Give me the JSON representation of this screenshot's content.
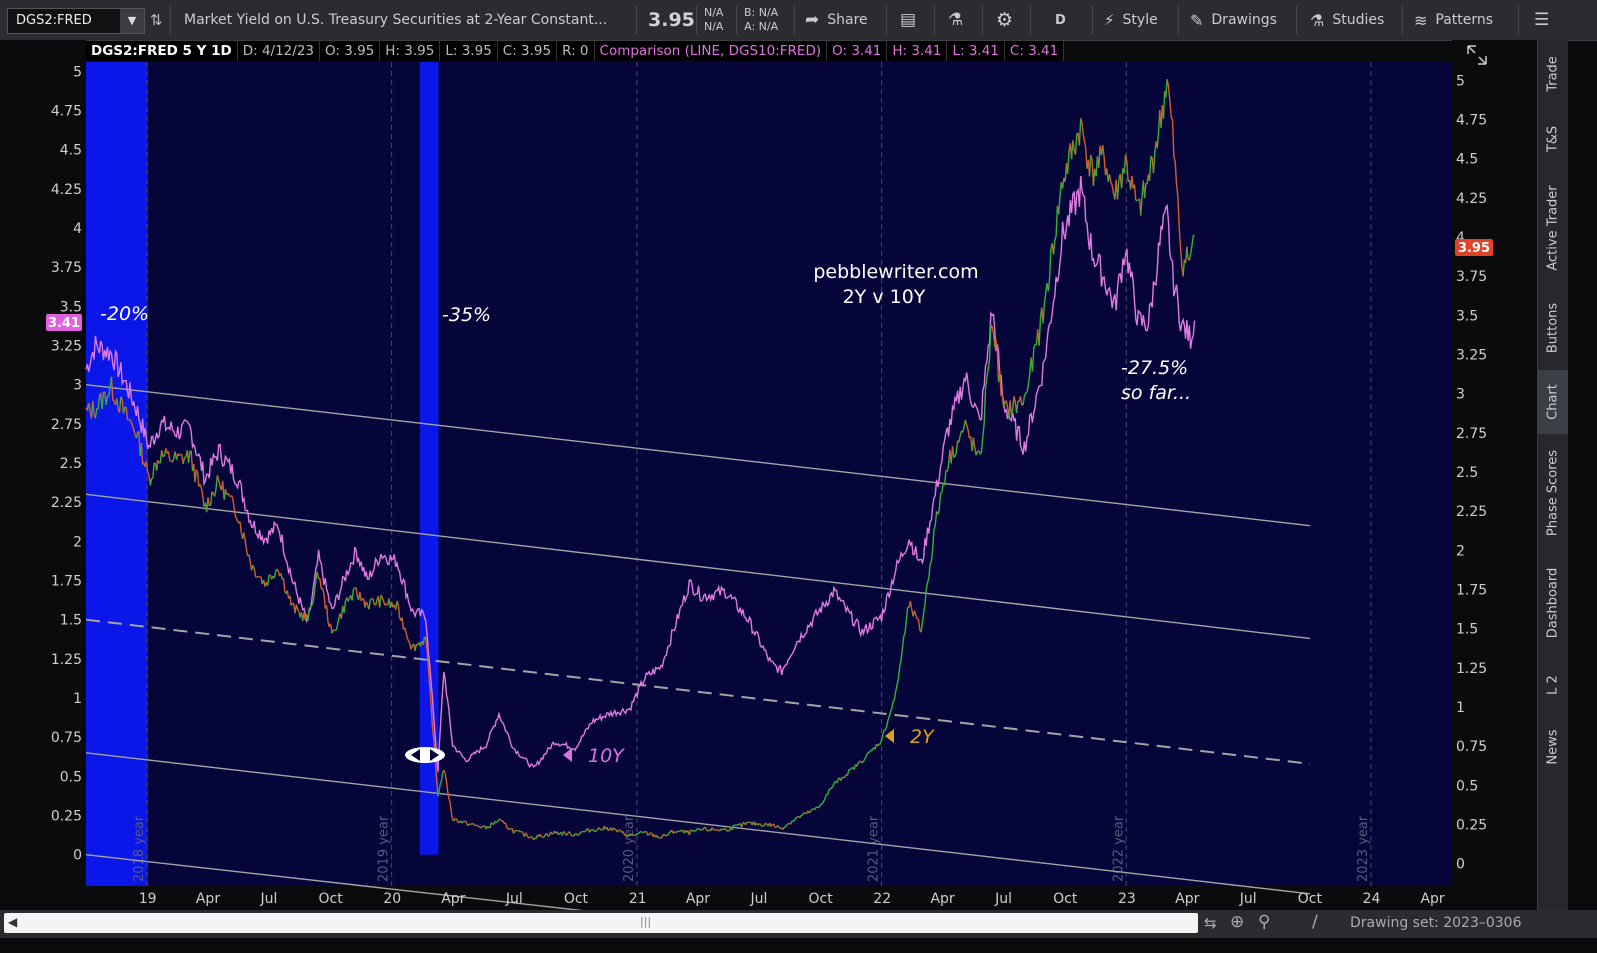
{
  "toolbar": {
    "symbol": "DGS2:FRED",
    "description": "Market Yield on U.S. Treasury Securities at 2-Year Constant...",
    "last_price": "3.95",
    "na_top": "N/A",
    "na_bottom": "N/A",
    "bid": "B: N/A",
    "ask": "A: N/A",
    "share_label": "Share",
    "aggregation": "D",
    "style_label": "Style",
    "drawings_label": "Drawings",
    "studies_label": "Studies",
    "patterns_label": "Patterns"
  },
  "info_bar": {
    "symbol_period": "DGS2:FRED 5 Y 1D",
    "date": "D: 4/12/23",
    "open": "O: 3.95",
    "high": "H: 3.95",
    "low": "L: 3.95",
    "close": "C: 3.95",
    "range": "R: 0",
    "comparison": "Comparison (LINE, DGS10:FRED)",
    "cmp_open": "O: 3.41",
    "cmp_high": "H: 3.41",
    "cmp_low": "L: 3.41",
    "cmp_close": "C: 3.41"
  },
  "side_tabs": [
    "Trade",
    "T&S",
    "Active Trader",
    "Buttons",
    "Chart",
    "Phase Scores",
    "Dashboard",
    "L 2",
    "News"
  ],
  "bottom_bar": {
    "drawing_set": "Drawing set: 2023–0306"
  },
  "colors": {
    "background": "#05053a",
    "recession_band": "#0a17e8",
    "series_10y": "#e07ae0",
    "series_2y_up": "#2fb33a",
    "series_2y_down": "#d95a2a",
    "trend_lines": "#a4a4a4",
    "badge_2y": "#e0432a",
    "badge_10y": "#e060e0",
    "label_2y": "#d9a21a",
    "label_10y": "#e070e0"
  },
  "chart_data": {
    "type": "line",
    "ylim": [
      -0.2,
      5.06
    ],
    "xlim": [
      "2018-10-01",
      "2024-04-30"
    ],
    "y_ticks_left": [
      "5",
      "4.75",
      "4.5",
      "4.25",
      "4",
      "3.75",
      "3.5",
      "3.25",
      "3",
      "2.75",
      "2.5",
      "2.25",
      "2",
      "1.75",
      "1.5",
      "1.25",
      "1",
      "0.75",
      "0.5",
      "0.25",
      "0"
    ],
    "y_ticks_right": [
      "5",
      "4.75",
      "4.5",
      "4.25",
      "4",
      "3.75",
      "3.5",
      "3.25",
      "3",
      "2.75",
      "2.5",
      "2.25",
      "2",
      "1.75",
      "1.5",
      "1.25",
      "1",
      "0.75",
      "0.5",
      "0.25",
      "0"
    ],
    "x_ticks": [
      {
        "label": "19",
        "date": "2019-01-01"
      },
      {
        "label": "Apr",
        "date": "2019-04-01"
      },
      {
        "label": "Jul",
        "date": "2019-07-01"
      },
      {
        "label": "Oct",
        "date": "2019-10-01"
      },
      {
        "label": "20",
        "date": "2020-01-01"
      },
      {
        "label": "Apr",
        "date": "2020-04-01"
      },
      {
        "label": "Jul",
        "date": "2020-07-01"
      },
      {
        "label": "Oct",
        "date": "2020-10-01"
      },
      {
        "label": "21",
        "date": "2021-01-01"
      },
      {
        "label": "Apr",
        "date": "2021-04-01"
      },
      {
        "label": "Jul",
        "date": "2021-07-01"
      },
      {
        "label": "Oct",
        "date": "2021-10-01"
      },
      {
        "label": "22",
        "date": "2022-01-01"
      },
      {
        "label": "Apr",
        "date": "2022-04-01"
      },
      {
        "label": "Jul",
        "date": "2022-07-01"
      },
      {
        "label": "Oct",
        "date": "2022-10-01"
      },
      {
        "label": "23",
        "date": "2023-01-01"
      },
      {
        "label": "Apr",
        "date": "2023-04-01"
      },
      {
        "label": "Jul",
        "date": "2023-07-01"
      },
      {
        "label": "Oct",
        "date": "2023-10-01"
      },
      {
        "label": "24",
        "date": "2024-01-01"
      },
      {
        "label": "Apr",
        "date": "2024-04-01"
      }
    ],
    "year_markers": [
      {
        "label": "2018 year",
        "date": "2018-12-31"
      },
      {
        "label": "2019 year",
        "date": "2019-12-31"
      },
      {
        "label": "2020 year",
        "date": "2020-12-31"
      },
      {
        "label": "2021 year",
        "date": "2021-12-31"
      },
      {
        "label": "2022 year",
        "date": "2022-12-31"
      },
      {
        "label": "2023 year",
        "date": "2023-12-31"
      }
    ],
    "shaded_periods": [
      {
        "from": "2018-10-01",
        "to": "2019-01-01",
        "top": 5.06
      },
      {
        "from": "2020-02-11",
        "to": "2020-03-10",
        "top": 5.06,
        "bottom": 0
      }
    ],
    "series": [
      {
        "name": "DGS10:FRED",
        "points": [
          [
            "2018-10-01",
            3.1
          ],
          [
            "2018-10-15",
            3.25
          ],
          [
            "2018-11-08",
            3.2
          ],
          [
            "2018-11-30",
            3.0
          ],
          [
            "2018-12-15",
            2.85
          ],
          [
            "2019-01-03",
            2.6
          ],
          [
            "2019-01-20",
            2.75
          ],
          [
            "2019-02-15",
            2.7
          ],
          [
            "2019-03-05",
            2.72
          ],
          [
            "2019-03-28",
            2.4
          ],
          [
            "2019-04-17",
            2.58
          ],
          [
            "2019-05-15",
            2.4
          ],
          [
            "2019-06-05",
            2.12
          ],
          [
            "2019-06-25",
            2.02
          ],
          [
            "2019-07-15",
            2.1
          ],
          [
            "2019-08-05",
            1.75
          ],
          [
            "2019-08-28",
            1.47
          ],
          [
            "2019-09-13",
            1.9
          ],
          [
            "2019-10-03",
            1.55
          ],
          [
            "2019-10-25",
            1.8
          ],
          [
            "2019-11-08",
            1.94
          ],
          [
            "2019-11-25",
            1.75
          ],
          [
            "2019-12-15",
            1.92
          ],
          [
            "2020-01-08",
            1.87
          ],
          [
            "2020-01-31",
            1.55
          ],
          [
            "2020-02-20",
            1.52
          ],
          [
            "2020-03-09",
            0.54
          ],
          [
            "2020-03-18",
            1.18
          ],
          [
            "2020-03-31",
            0.7
          ],
          [
            "2020-04-20",
            0.6
          ],
          [
            "2020-05-20",
            0.7
          ],
          [
            "2020-06-08",
            0.9
          ],
          [
            "2020-06-30",
            0.68
          ],
          [
            "2020-07-30",
            0.55
          ],
          [
            "2020-08-30",
            0.72
          ],
          [
            "2020-09-30",
            0.68
          ],
          [
            "2020-10-25",
            0.85
          ],
          [
            "2020-11-20",
            0.9
          ],
          [
            "2020-12-20",
            0.93
          ],
          [
            "2021-01-12",
            1.13
          ],
          [
            "2021-02-05",
            1.2
          ],
          [
            "2021-02-25",
            1.45
          ],
          [
            "2021-03-19",
            1.73
          ],
          [
            "2021-04-08",
            1.65
          ],
          [
            "2021-05-12",
            1.68
          ],
          [
            "2021-06-15",
            1.5
          ],
          [
            "2021-07-19",
            1.22
          ],
          [
            "2021-08-04",
            1.17
          ],
          [
            "2021-08-25",
            1.35
          ],
          [
            "2021-09-28",
            1.55
          ],
          [
            "2021-10-21",
            1.68
          ],
          [
            "2021-11-10",
            1.55
          ],
          [
            "2021-12-02",
            1.42
          ],
          [
            "2021-12-31",
            1.52
          ],
          [
            "2022-01-21",
            1.82
          ],
          [
            "2022-02-10",
            2.02
          ],
          [
            "2022-02-28",
            1.85
          ],
          [
            "2022-03-21",
            2.3
          ],
          [
            "2022-04-08",
            2.7
          ],
          [
            "2022-05-05",
            3.05
          ],
          [
            "2022-05-27",
            2.75
          ],
          [
            "2022-06-14",
            3.48
          ],
          [
            "2022-07-01",
            2.88
          ],
          [
            "2022-08-01",
            2.6
          ],
          [
            "2022-08-29",
            3.1
          ],
          [
            "2022-09-27",
            3.95
          ],
          [
            "2022-10-24",
            4.25
          ],
          [
            "2022-11-10",
            3.85
          ],
          [
            "2022-11-28",
            3.68
          ],
          [
            "2022-12-14",
            3.5
          ],
          [
            "2022-12-30",
            3.88
          ],
          [
            "2023-01-18",
            3.4
          ],
          [
            "2023-02-02",
            3.39
          ],
          [
            "2023-02-21",
            3.95
          ],
          [
            "2023-03-02",
            4.08
          ],
          [
            "2023-03-10",
            3.7
          ],
          [
            "2023-03-24",
            3.38
          ],
          [
            "2023-04-06",
            3.3
          ],
          [
            "2023-04-12",
            3.41
          ]
        ]
      },
      {
        "name": "DGS2:FRED",
        "points": [
          [
            "2018-10-01",
            2.82
          ],
          [
            "2018-10-15",
            2.85
          ],
          [
            "2018-11-08",
            2.98
          ],
          [
            "2018-11-30",
            2.8
          ],
          [
            "2018-12-15",
            2.7
          ],
          [
            "2019-01-03",
            2.4
          ],
          [
            "2019-01-20",
            2.55
          ],
          [
            "2019-02-15",
            2.52
          ],
          [
            "2019-03-05",
            2.55
          ],
          [
            "2019-03-28",
            2.22
          ],
          [
            "2019-04-17",
            2.38
          ],
          [
            "2019-05-15",
            2.18
          ],
          [
            "2019-06-05",
            1.85
          ],
          [
            "2019-06-25",
            1.73
          ],
          [
            "2019-07-15",
            1.84
          ],
          [
            "2019-08-05",
            1.58
          ],
          [
            "2019-08-28",
            1.5
          ],
          [
            "2019-09-13",
            1.8
          ],
          [
            "2019-10-03",
            1.4
          ],
          [
            "2019-10-25",
            1.62
          ],
          [
            "2019-11-08",
            1.67
          ],
          [
            "2019-11-25",
            1.6
          ],
          [
            "2019-12-15",
            1.62
          ],
          [
            "2020-01-08",
            1.58
          ],
          [
            "2020-01-31",
            1.32
          ],
          [
            "2020-02-20",
            1.38
          ],
          [
            "2020-03-09",
            0.38
          ],
          [
            "2020-03-18",
            0.55
          ],
          [
            "2020-03-31",
            0.23
          ],
          [
            "2020-04-20",
            0.2
          ],
          [
            "2020-05-20",
            0.17
          ],
          [
            "2020-06-08",
            0.22
          ],
          [
            "2020-06-30",
            0.15
          ],
          [
            "2020-07-30",
            0.11
          ],
          [
            "2020-08-30",
            0.14
          ],
          [
            "2020-09-30",
            0.13
          ],
          [
            "2020-10-25",
            0.16
          ],
          [
            "2020-11-20",
            0.17
          ],
          [
            "2020-12-20",
            0.12
          ],
          [
            "2021-01-12",
            0.14
          ],
          [
            "2021-02-05",
            0.11
          ],
          [
            "2021-02-25",
            0.15
          ],
          [
            "2021-03-19",
            0.14
          ],
          [
            "2021-04-08",
            0.16
          ],
          [
            "2021-05-12",
            0.16
          ],
          [
            "2021-06-15",
            0.2
          ],
          [
            "2021-07-19",
            0.19
          ],
          [
            "2021-08-04",
            0.17
          ],
          [
            "2021-08-25",
            0.23
          ],
          [
            "2021-09-28",
            0.3
          ],
          [
            "2021-10-21",
            0.45
          ],
          [
            "2021-11-10",
            0.52
          ],
          [
            "2021-12-02",
            0.6
          ],
          [
            "2021-12-31",
            0.73
          ],
          [
            "2022-01-21",
            1.02
          ],
          [
            "2022-02-10",
            1.6
          ],
          [
            "2022-02-28",
            1.43
          ],
          [
            "2022-03-21",
            2.1
          ],
          [
            "2022-04-08",
            2.5
          ],
          [
            "2022-05-05",
            2.73
          ],
          [
            "2022-05-27",
            2.5
          ],
          [
            "2022-06-14",
            3.42
          ],
          [
            "2022-07-01",
            2.83
          ],
          [
            "2022-08-01",
            2.9
          ],
          [
            "2022-08-29",
            3.45
          ],
          [
            "2022-09-27",
            4.3
          ],
          [
            "2022-10-24",
            4.65
          ],
          [
            "2022-11-10",
            4.35
          ],
          [
            "2022-11-28",
            4.45
          ],
          [
            "2022-12-14",
            4.2
          ],
          [
            "2022-12-30",
            4.42
          ],
          [
            "2023-01-18",
            4.1
          ],
          [
            "2023-02-02",
            4.3
          ],
          [
            "2023-02-21",
            4.7
          ],
          [
            "2023-03-02",
            4.95
          ],
          [
            "2023-03-10",
            4.6
          ],
          [
            "2023-03-24",
            3.78
          ],
          [
            "2023-04-06",
            3.82
          ],
          [
            "2023-04-12",
            3.95
          ]
        ]
      }
    ],
    "trend_lines": [
      {
        "from": [
          "2018-10-01",
          3.0
        ],
        "to": [
          "2023-10-01",
          2.1
        ],
        "style": "solid"
      },
      {
        "from": [
          "2018-10-01",
          2.3
        ],
        "to": [
          "2023-10-01",
          1.38
        ],
        "style": "solid"
      },
      {
        "from": [
          "2018-10-01",
          1.5
        ],
        "to": [
          "2023-10-01",
          0.58
        ],
        "style": "dashed"
      },
      {
        "from": [
          "2018-10-01",
          0.65
        ],
        "to": [
          "2023-10-01",
          -0.25
        ],
        "style": "solid"
      },
      {
        "from": [
          "2018-10-01",
          0.0
        ],
        "to": [
          "2023-10-01",
          -0.88
        ],
        "style": "solid"
      }
    ],
    "annotations": {
      "drop_2018": "-20%",
      "drop_2020": "-35%",
      "watermark_line1": "pebblewriter.com",
      "watermark_line2": "2Y v 10Y",
      "drop_2023_line1": "-27.5%",
      "drop_2023_line2": "so far...",
      "label_10y": "10Y",
      "label_2y": "2Y"
    },
    "price_badges": {
      "dgs2_last": "3.95",
      "dgs10_last": "3.41"
    }
  }
}
